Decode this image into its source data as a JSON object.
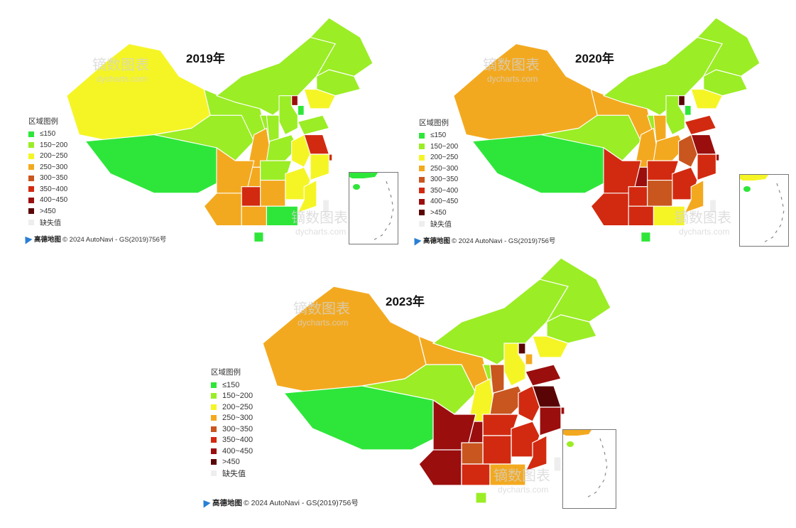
{
  "legend": {
    "title": "区域图例",
    "items": [
      {
        "label": "≤150",
        "color": "#2ee63a"
      },
      {
        "label": "150~200",
        "color": "#9bed25"
      },
      {
        "label": "200~250",
        "color": "#f5f526"
      },
      {
        "label": "250~300",
        "color": "#f3a91f"
      },
      {
        "label": "300~350",
        "color": "#c9561f"
      },
      {
        "label": "350~400",
        "color": "#d22a10"
      },
      {
        "label": "400~450",
        "color": "#9a0e0e"
      },
      {
        "label": ">450",
        "color": "#5a0505"
      },
      {
        "label": "缺失值",
        "color": "#eeeeee"
      }
    ]
  },
  "attribution": {
    "logo_text": "高德地图",
    "text": "© 2024 AutoNavi - GS(2019)756号"
  },
  "watermark": {
    "main": "镝数图表",
    "sub": "dycharts.com"
  },
  "maps": [
    {
      "title": "2019年",
      "regions": {
        "xinjiang": "#f5f526",
        "tibet": "#2ee63a",
        "qinghai": "#9bed25",
        "gansu": "#9bed25",
        "neimenggu": "#9bed25",
        "heilongjiang": "#9bed25",
        "jilin": "#9bed25",
        "liaoning": "#f5f526",
        "hebei": "#9bed25",
        "shanxi": "#9bed25",
        "shaanxi": "#f3a91f",
        "ningxia": "#9bed25",
        "sichuan": "#f3a91f",
        "yunnan": "#f3a91f",
        "guizhou": "#d22a10",
        "guangxi": "#f3a91f",
        "guangdong": "#2ee63a",
        "hunan": "#f3a91f",
        "hubei": "#9bed25",
        "henan": "#9bed25",
        "shandong": "#9bed25",
        "jiangsu": "#d22a10",
        "anhui": "#f5f526",
        "zhejiang": "#f5f526",
        "jiangxi": "#f5f526",
        "fujian": "#f5f526",
        "hainan": "#2ee63a",
        "taiwan": "#eeeeee",
        "beijing": "#9a0e0e",
        "tianjin": "#2ee63a",
        "shanghai": "#d22a10",
        "chongqing": "#f3a91f"
      }
    },
    {
      "title": "2020年",
      "regions": {
        "xinjiang": "#f3a91f",
        "tibet": "#2ee63a",
        "qinghai": "#9bed25",
        "gansu": "#f3a91f",
        "neimenggu": "#9bed25",
        "heilongjiang": "#9bed25",
        "jilin": "#9bed25",
        "liaoning": "#f5f526",
        "hebei": "#9bed25",
        "shanxi": "#f3a91f",
        "shaanxi": "#f3a91f",
        "ningxia": "#9bed25",
        "sichuan": "#d22a10",
        "yunnan": "#d22a10",
        "guizhou": "#d22a10",
        "guangxi": "#d22a10",
        "guangdong": "#f5f526",
        "hunan": "#c9561f",
        "hubei": "#d22a10",
        "henan": "#f3a91f",
        "shandong": "#d22a10",
        "jiangsu": "#9a0e0e",
        "anhui": "#c9561f",
        "zhejiang": "#d22a10",
        "jiangxi": "#d22a10",
        "fujian": "#f3a91f",
        "hainan": "#2ee63a",
        "taiwan": "#eeeeee",
        "beijing": "#5a0505",
        "tianjin": "#2ee63a",
        "shanghai": "#9a0e0e",
        "chongqing": "#9a0e0e"
      }
    },
    {
      "title": "2023年",
      "regions": {
        "xinjiang": "#f3a91f",
        "tibet": "#2ee63a",
        "qinghai": "#9bed25",
        "gansu": "#f3a91f",
        "neimenggu": "#9bed25",
        "heilongjiang": "#9bed25",
        "jilin": "#9bed25",
        "liaoning": "#f5f526",
        "hebei": "#f5f526",
        "shanxi": "#c9561f",
        "shaanxi": "#f5f526",
        "ningxia": "#9bed25",
        "sichuan": "#9a0e0e",
        "yunnan": "#9a0e0e",
        "guizhou": "#c9561f",
        "guangxi": "#d22a10",
        "guangdong": "#f3a91f",
        "hunan": "#d22a10",
        "hubei": "#d22a10",
        "henan": "#c9561f",
        "shandong": "#9a0e0e",
        "jiangsu": "#5a0505",
        "anhui": "#d22a10",
        "zhejiang": "#9a0e0e",
        "jiangxi": "#d22a10",
        "fujian": "#d22a10",
        "hainan": "#9bed25",
        "taiwan": "#eeeeee",
        "beijing": "#5a0505",
        "tianjin": "#f3a91f",
        "shanghai": "#9a0e0e",
        "chongqing": "#9a0e0e"
      }
    }
  ]
}
